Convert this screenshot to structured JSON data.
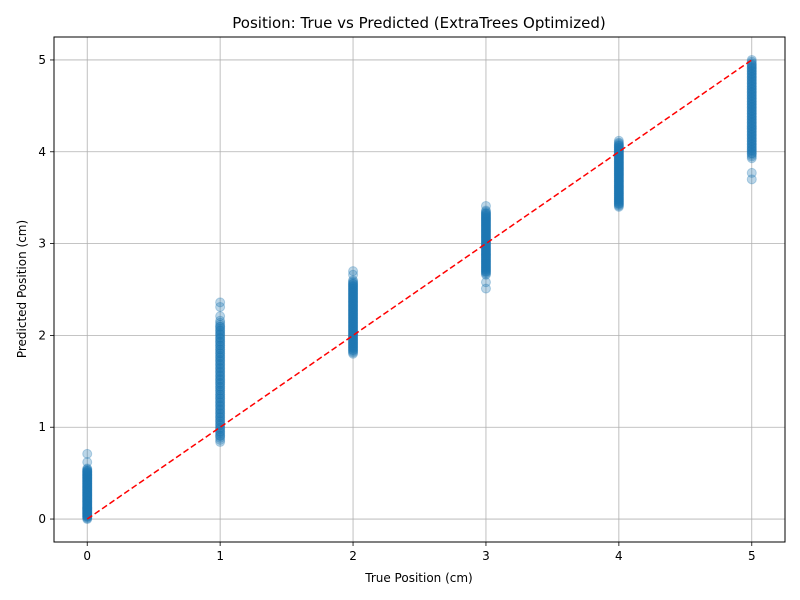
{
  "chart_data": {
    "type": "scatter",
    "title": "Position: True vs Predicted (ExtraTrees Optimized)",
    "xlabel": "True Position (cm)",
    "ylabel": "Predicted Position (cm)",
    "xlim": [
      -0.25,
      5.25
    ],
    "ylim": [
      -0.25,
      5.25
    ],
    "xticks": [
      0,
      1,
      2,
      3,
      4,
      5
    ],
    "yticks": [
      0,
      1,
      2,
      3,
      4,
      5
    ],
    "grid": true,
    "point_color": "#1f77b4",
    "point_alpha": 0.3,
    "reference_line": {
      "from": [
        0,
        0
      ],
      "to": [
        5,
        5
      ],
      "color": "#ff0000",
      "style": "dashed"
    },
    "groups": [
      {
        "x": 0,
        "y_min": 0.0,
        "y_max": 0.55,
        "outliers": [
          0.62,
          0.71
        ]
      },
      {
        "x": 1,
        "y_min": 0.84,
        "y_max": 2.16,
        "outliers": [
          2.21,
          2.31,
          2.36
        ]
      },
      {
        "x": 2,
        "y_min": 1.8,
        "y_max": 2.6,
        "outliers": [
          2.66,
          2.7
        ]
      },
      {
        "x": 3,
        "y_min": 2.66,
        "y_max": 3.36,
        "outliers": [
          2.51,
          2.58,
          3.41
        ]
      },
      {
        "x": 4,
        "y_min": 3.4,
        "y_max": 4.1,
        "outliers": [
          4.12
        ]
      },
      {
        "x": 5,
        "y_min": 3.93,
        "y_max": 5.0,
        "outliers": [
          3.7,
          3.77
        ]
      }
    ]
  }
}
